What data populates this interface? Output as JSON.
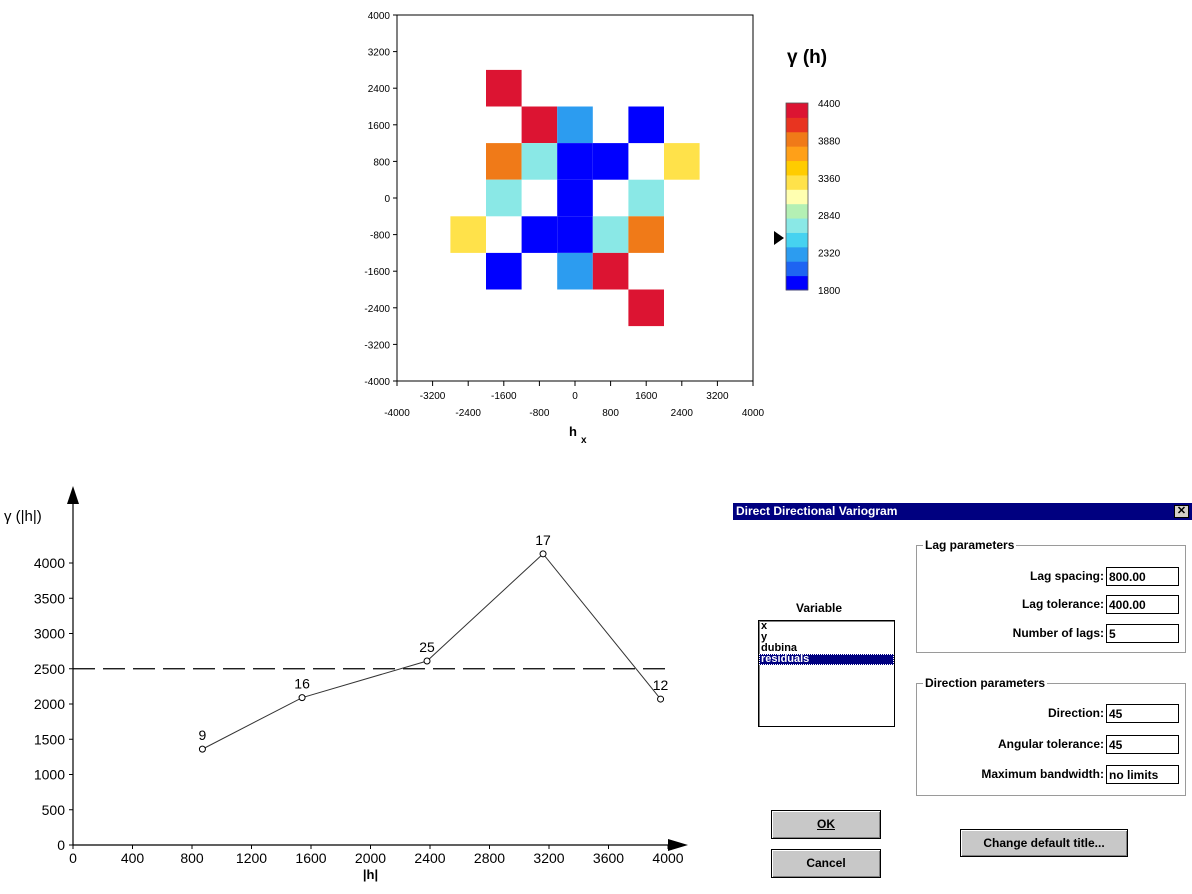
{
  "chart_data": [
    {
      "type": "heatmap",
      "title": "γ (h)",
      "xlabel": "h",
      "xlabel_subscript": "x",
      "x_ticks_top_row": [
        "-3200",
        "-1600",
        "0",
        "1600",
        "3200"
      ],
      "x_ticks_bottom_row": [
        "-4000",
        "-2400",
        "-800",
        "800",
        "2400",
        "4000"
      ],
      "y_ticks": [
        "4000",
        "3200",
        "2400",
        "1600",
        "800",
        "0",
        "-800",
        "-1600",
        "-2400",
        "-3200",
        "-4000"
      ],
      "xlim": [
        -4000,
        4000
      ],
      "ylim": [
        -4000,
        4000
      ],
      "cell_size": 800,
      "colorbar": {
        "labels": [
          "4400",
          "3880",
          "3360",
          "2840",
          "2320",
          "1800"
        ],
        "range": [
          1800,
          4400
        ],
        "colors": [
          "#0000ff",
          "#1e64f2",
          "#2c9cf0",
          "#46d2f0",
          "#8ae8e6",
          "#b4f0b4",
          "#ffffb0",
          "#ffe24a",
          "#ffcc00",
          "#ffa018",
          "#f07a18",
          "#e83420",
          "#dc1432"
        ]
      },
      "cells": [
        {
          "x": -1600,
          "y": 2400,
          "value": 4400
        },
        {
          "x": -800,
          "y": 1600,
          "value": 4400
        },
        {
          "x": 0,
          "y": 1600,
          "value": 2300
        },
        {
          "x": 1600,
          "y": 1600,
          "value": 1800
        },
        {
          "x": -1600,
          "y": 800,
          "value": 3880
        },
        {
          "x": -800,
          "y": 800,
          "value": 2700
        },
        {
          "x": 0,
          "y": 800,
          "value": 1800
        },
        {
          "x": 800,
          "y": 800,
          "value": 1800
        },
        {
          "x": 2400,
          "y": 800,
          "value": 3400
        },
        {
          "x": -1600,
          "y": 0,
          "value": 2700
        },
        {
          "x": 0,
          "y": 0,
          "value": 1800
        },
        {
          "x": 1600,
          "y": 0,
          "value": 2700
        },
        {
          "x": -2400,
          "y": -800,
          "value": 3400
        },
        {
          "x": -800,
          "y": -800,
          "value": 1800
        },
        {
          "x": 0,
          "y": -800,
          "value": 1800
        },
        {
          "x": 800,
          "y": -800,
          "value": 2700
        },
        {
          "x": 1600,
          "y": -800,
          "value": 3880
        },
        {
          "x": -1600,
          "y": -1600,
          "value": 1800
        },
        {
          "x": 0,
          "y": -1600,
          "value": 2300
        },
        {
          "x": 800,
          "y": -1600,
          "value": 4400
        },
        {
          "x": 1600,
          "y": -2400,
          "value": 4400
        }
      ]
    },
    {
      "type": "line",
      "ylabel": "γ (|h|)",
      "xlabel": "|h|",
      "xlim": [
        0,
        4000
      ],
      "ylim": [
        0,
        4000
      ],
      "x_ticks": [
        "0",
        "400",
        "800",
        "1200",
        "1600",
        "2000",
        "2400",
        "2800",
        "3200",
        "3600",
        "4000"
      ],
      "y_ticks": [
        "0",
        "500",
        "1000",
        "1500",
        "2000",
        "2500",
        "3000",
        "3500",
        "4000"
      ],
      "series": [
        {
          "x": [
            870,
            1540,
            2380,
            3160,
            3950
          ],
          "y": [
            1360,
            2090,
            2610,
            4130,
            2070
          ],
          "labels": [
            "9",
            "16",
            "25",
            "17",
            "12"
          ]
        }
      ],
      "reference_line": {
        "y": 2500,
        "style": "dashed"
      }
    }
  ],
  "stray_text": "h x",
  "dialog": {
    "title": "Direct Directional Variogram",
    "close_icon": "close-x-icon",
    "variable_label": "Variable",
    "variables": [
      "x",
      "y",
      "dubina",
      "residuals"
    ],
    "selected_variable": "residuals",
    "lag_group": {
      "title": "Lag parameters",
      "lag_spacing_label": "Lag spacing:",
      "lag_spacing_value": "800.00",
      "lag_tolerance_label": "Lag tolerance:",
      "lag_tolerance_value": "400.00",
      "num_lags_label": "Number of lags:",
      "num_lags_value": "5"
    },
    "direction_group": {
      "title": "Direction parameters",
      "direction_label": "Direction:",
      "direction_value": "45",
      "angular_tolerance_label": "Angular tolerance:",
      "angular_tolerance_value": "45",
      "max_bandwidth_label": "Maximum bandwidth:",
      "max_bandwidth_value": "no limits"
    },
    "ok_label": "OK",
    "cancel_label": "Cancel",
    "change_title_label": "Change default title..."
  }
}
